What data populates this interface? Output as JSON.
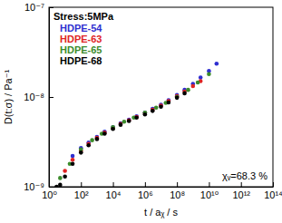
{
  "chart_data": {
    "type": "scatter",
    "xlabel": "t / aᵪ / s",
    "ylabel": "D(t:σ) / Pa⁻¹",
    "annotations": [
      "Stress:5MPa",
      "χᵥ=68.3 %"
    ],
    "log": true,
    "grid": false,
    "legend": "upper left",
    "marker": "circle",
    "xlim": [
      1,
      100000000000000
    ],
    "ylim": [
      1e-09,
      1e-07
    ],
    "xticks": [
      {
        "value": 1,
        "label": "10⁰"
      },
      {
        "value": 100,
        "label": "10²"
      },
      {
        "value": 10000,
        "label": "10⁴"
      },
      {
        "value": 1000000,
        "label": "10⁶"
      },
      {
        "value": 100000000,
        "label": "10⁸"
      },
      {
        "value": 10000000000,
        "label": "10¹⁰"
      },
      {
        "value": 1000000000000,
        "label": "10¹²"
      },
      {
        "value": 100000000000000,
        "label": "10¹⁴"
      }
    ],
    "yticks": [
      {
        "value": 1e-09,
        "label": "10⁻⁹"
      },
      {
        "value": 1e-08,
        "label": "10⁻⁸"
      },
      {
        "value": 1e-07,
        "label": "10⁻⁷"
      }
    ],
    "series": [
      {
        "name": "HDPE-54",
        "color": "#2f2fd0",
        "x": [
          30,
          100,
          300,
          1000,
          3000,
          10000,
          30000,
          100000,
          300000,
          1000000,
          3000000,
          10000000,
          30000000,
          100000000,
          300000000,
          1000000000,
          3000000000,
          10000000000,
          30000000000
        ],
        "values": [
          2.2e-09,
          2.7e-09,
          3.1e-09,
          3.6e-09,
          4.1e-09,
          4.6e-09,
          5.1e-09,
          5.6e-09,
          6.1e-09,
          6.7e-09,
          7.4e-09,
          8.2e-09,
          9.2e-09,
          1.05e-08,
          1.2e-08,
          1.4e-08,
          1.65e-08,
          1.95e-08,
          2.35e-08
        ]
      },
      {
        "name": "HDPE-63",
        "color": "#e02424",
        "x": [
          10,
          30,
          100,
          300,
          1000,
          3000,
          10000,
          30000,
          100000,
          300000,
          1000000,
          3000000,
          10000000,
          30000000,
          100000000,
          300000000,
          1000000000,
          3000000000
        ],
        "values": [
          1.5e-09,
          2e-09,
          2.5e-09,
          3e-09,
          3.5e-09,
          4e-09,
          4.5e-09,
          5e-09,
          5.5e-09,
          6e-09,
          6.6e-09,
          7.2e-09,
          8e-09,
          9e-09,
          1.02e-08,
          1.15e-08,
          1.32e-08,
          1.5e-08
        ]
      },
      {
        "name": "HDPE-65",
        "color": "#3c8c2c",
        "x": [
          5,
          20,
          100,
          500,
          2000,
          10000,
          50000,
          200000,
          1000000,
          5000000,
          20000000,
          100000000,
          500000000,
          2000000000,
          10000000000
        ],
        "values": [
          1.25e-09,
          1.8e-09,
          2.6e-09,
          3.3e-09,
          3.9e-09,
          4.6e-09,
          5.3e-09,
          5.9e-09,
          6.7e-09,
          7.6e-09,
          8.6e-09,
          1e-08,
          1.2e-08,
          1.45e-08,
          1.8e-08
        ]
      },
      {
        "name": "HDPE-68",
        "color": "#000000",
        "x": [
          3,
          5,
          10,
          30,
          100,
          300,
          1000,
          3000,
          10000,
          30000,
          100000,
          300000,
          1000000,
          3000000,
          10000000,
          30000000,
          100000000,
          300000000
        ],
        "values": [
          1e-09,
          1.05e-09,
          1.3e-09,
          1.8e-09,
          2.4e-09,
          2.9e-09,
          3.4e-09,
          3.9e-09,
          4.4e-09,
          4.9e-09,
          5.4e-09,
          5.9e-09,
          6.4e-09,
          7e-09,
          7.8e-09,
          8.7e-09,
          9.8e-09,
          1.1e-08
        ]
      }
    ]
  }
}
